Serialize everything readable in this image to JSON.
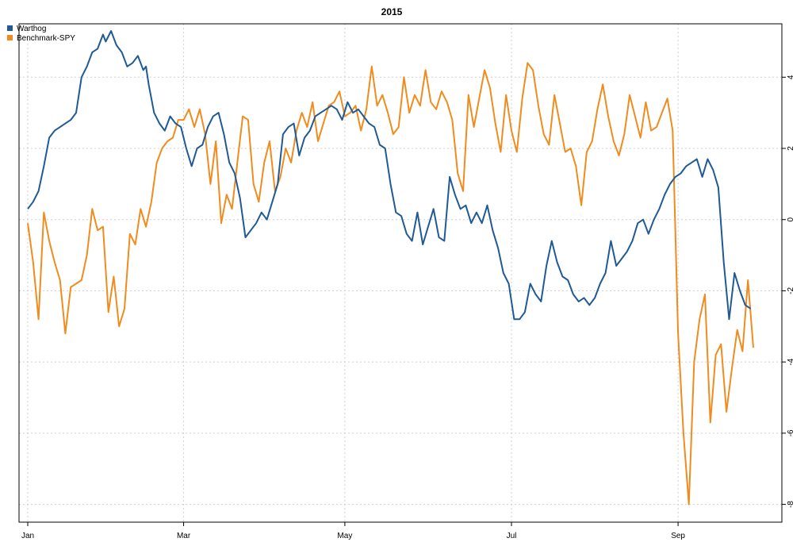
{
  "chart_data": {
    "type": "line",
    "title": "2015",
    "xlabel": "",
    "ylabel": "",
    "x_tick_labels": [
      "Jan",
      "Mar",
      "May",
      "Jul",
      "Sep"
    ],
    "x_tick_days": [
      2,
      60,
      120,
      182,
      244
    ],
    "x_range_days": [
      2,
      272
    ],
    "y_ticks": [
      4,
      2,
      0,
      -2,
      -4,
      -6,
      -8
    ],
    "ylim": [
      -8.5,
      5.5
    ],
    "y_axis_side": "right",
    "grid": true,
    "legend_position": "top-left",
    "series": [
      {
        "name": "Warthog",
        "color": "#1f5a96",
        "points": [
          [
            2,
            0.3
          ],
          [
            4,
            0.5
          ],
          [
            6,
            0.8
          ],
          [
            8,
            1.5
          ],
          [
            10,
            2.3
          ],
          [
            12,
            2.5
          ],
          [
            14,
            2.6
          ],
          [
            16,
            2.7
          ],
          [
            18,
            2.8
          ],
          [
            20,
            3.0
          ],
          [
            22,
            4.0
          ],
          [
            24,
            4.3
          ],
          [
            26,
            4.7
          ],
          [
            28,
            4.8
          ],
          [
            30,
            5.2
          ],
          [
            31,
            5.0
          ],
          [
            33,
            5.3
          ],
          [
            35,
            4.9
          ],
          [
            37,
            4.7
          ],
          [
            39,
            4.3
          ],
          [
            41,
            4.4
          ],
          [
            43,
            4.6
          ],
          [
            45,
            4.2
          ],
          [
            46,
            4.3
          ],
          [
            47,
            3.8
          ],
          [
            49,
            3.0
          ],
          [
            51,
            2.7
          ],
          [
            53,
            2.5
          ],
          [
            55,
            2.9
          ],
          [
            57,
            2.7
          ],
          [
            59,
            2.6
          ],
          [
            61,
            2.0
          ],
          [
            63,
            1.5
          ],
          [
            65,
            2.0
          ],
          [
            67,
            2.1
          ],
          [
            69,
            2.6
          ],
          [
            71,
            2.9
          ],
          [
            73,
            3.0
          ],
          [
            75,
            2.4
          ],
          [
            77,
            1.6
          ],
          [
            79,
            1.3
          ],
          [
            81,
            0.6
          ],
          [
            83,
            -0.5
          ],
          [
            85,
            -0.3
          ],
          [
            87,
            -0.1
          ],
          [
            89,
            0.2
          ],
          [
            91,
            0.0
          ],
          [
            93,
            0.5
          ],
          [
            95,
            1.0
          ],
          [
            97,
            2.4
          ],
          [
            99,
            2.6
          ],
          [
            101,
            2.7
          ],
          [
            103,
            1.8
          ],
          [
            105,
            2.3
          ],
          [
            107,
            2.5
          ],
          [
            109,
            2.9
          ],
          [
            111,
            3.0
          ],
          [
            113,
            3.1
          ],
          [
            115,
            3.2
          ],
          [
            117,
            3.1
          ],
          [
            119,
            2.8
          ],
          [
            121,
            3.3
          ],
          [
            123,
            3.0
          ],
          [
            125,
            3.1
          ],
          [
            127,
            2.9
          ],
          [
            129,
            2.7
          ],
          [
            131,
            2.6
          ],
          [
            133,
            2.1
          ],
          [
            135,
            2.0
          ],
          [
            137,
            1.0
          ],
          [
            139,
            0.2
          ],
          [
            141,
            0.1
          ],
          [
            143,
            -0.4
          ],
          [
            145,
            -0.6
          ],
          [
            147,
            0.2
          ],
          [
            149,
            -0.7
          ],
          [
            151,
            -0.2
          ],
          [
            153,
            0.3
          ],
          [
            155,
            -0.5
          ],
          [
            157,
            -0.6
          ],
          [
            159,
            1.2
          ],
          [
            161,
            0.7
          ],
          [
            163,
            0.3
          ],
          [
            165,
            0.4
          ],
          [
            167,
            -0.1
          ],
          [
            169,
            0.2
          ],
          [
            171,
            -0.1
          ],
          [
            173,
            0.4
          ],
          [
            175,
            -0.3
          ],
          [
            177,
            -0.8
          ],
          [
            179,
            -1.5
          ],
          [
            181,
            -1.8
          ],
          [
            183,
            -2.8
          ],
          [
            185,
            -2.8
          ],
          [
            187,
            -2.6
          ],
          [
            189,
            -1.8
          ],
          [
            191,
            -2.1
          ],
          [
            193,
            -2.3
          ],
          [
            195,
            -1.3
          ],
          [
            197,
            -0.6
          ],
          [
            199,
            -1.2
          ],
          [
            201,
            -1.6
          ],
          [
            203,
            -1.7
          ],
          [
            205,
            -2.1
          ],
          [
            207,
            -2.3
          ],
          [
            209,
            -2.2
          ],
          [
            211,
            -2.4
          ],
          [
            213,
            -2.2
          ],
          [
            215,
            -1.8
          ],
          [
            217,
            -1.5
          ],
          [
            219,
            -0.6
          ],
          [
            221,
            -1.3
          ],
          [
            223,
            -1.1
          ],
          [
            225,
            -0.9
          ],
          [
            227,
            -0.6
          ],
          [
            229,
            -0.1
          ],
          [
            231,
            0.0
          ],
          [
            233,
            -0.4
          ],
          [
            235,
            0.0
          ],
          [
            237,
            0.3
          ],
          [
            239,
            0.7
          ],
          [
            241,
            1.0
          ],
          [
            243,
            1.2
          ],
          [
            245,
            1.3
          ],
          [
            247,
            1.5
          ],
          [
            249,
            1.6
          ],
          [
            251,
            1.7
          ],
          [
            253,
            1.2
          ],
          [
            255,
            1.7
          ],
          [
            257,
            1.4
          ],
          [
            259,
            0.9
          ],
          [
            261,
            -1.2
          ],
          [
            263,
            -2.8
          ],
          [
            265,
            -1.5
          ],
          [
            267,
            -2.0
          ],
          [
            269,
            -2.4
          ],
          [
            271,
            -2.5
          ]
        ]
      },
      {
        "name": "Benchmark-SPY",
        "color": "#f08c1e",
        "points": [
          [
            2,
            -0.1
          ],
          [
            4,
            -1.2
          ],
          [
            6,
            -2.8
          ],
          [
            8,
            0.2
          ],
          [
            10,
            -0.6
          ],
          [
            12,
            -1.2
          ],
          [
            14,
            -1.7
          ],
          [
            16,
            -3.2
          ],
          [
            18,
            -1.9
          ],
          [
            20,
            -1.8
          ],
          [
            22,
            -1.7
          ],
          [
            24,
            -1.0
          ],
          [
            26,
            0.3
          ],
          [
            28,
            -0.3
          ],
          [
            30,
            -0.2
          ],
          [
            32,
            -2.6
          ],
          [
            34,
            -1.6
          ],
          [
            36,
            -3.0
          ],
          [
            38,
            -2.5
          ],
          [
            40,
            -0.4
          ],
          [
            42,
            -0.7
          ],
          [
            44,
            0.3
          ],
          [
            46,
            -0.2
          ],
          [
            48,
            0.5
          ],
          [
            50,
            1.6
          ],
          [
            52,
            2.0
          ],
          [
            54,
            2.2
          ],
          [
            56,
            2.3
          ],
          [
            58,
            2.8
          ],
          [
            60,
            2.8
          ],
          [
            62,
            3.1
          ],
          [
            64,
            2.6
          ],
          [
            66,
            3.1
          ],
          [
            68,
            2.4
          ],
          [
            70,
            1.0
          ],
          [
            72,
            2.2
          ],
          [
            74,
            -0.1
          ],
          [
            76,
            0.7
          ],
          [
            78,
            0.3
          ],
          [
            80,
            1.6
          ],
          [
            82,
            2.9
          ],
          [
            84,
            2.8
          ],
          [
            86,
            1.0
          ],
          [
            88,
            0.5
          ],
          [
            90,
            1.6
          ],
          [
            92,
            2.2
          ],
          [
            94,
            0.8
          ],
          [
            96,
            1.2
          ],
          [
            98,
            2.0
          ],
          [
            100,
            1.6
          ],
          [
            102,
            2.5
          ],
          [
            104,
            3.0
          ],
          [
            106,
            2.6
          ],
          [
            108,
            3.3
          ],
          [
            110,
            2.2
          ],
          [
            112,
            2.7
          ],
          [
            114,
            3.2
          ],
          [
            116,
            3.3
          ],
          [
            118,
            3.6
          ],
          [
            120,
            2.9
          ],
          [
            122,
            3.0
          ],
          [
            124,
            3.2
          ],
          [
            126,
            2.5
          ],
          [
            128,
            3.1
          ],
          [
            130,
            4.3
          ],
          [
            132,
            3.2
          ],
          [
            134,
            3.5
          ],
          [
            136,
            3.0
          ],
          [
            138,
            2.4
          ],
          [
            140,
            2.6
          ],
          [
            142,
            4.0
          ],
          [
            144,
            3.0
          ],
          [
            146,
            3.5
          ],
          [
            148,
            3.2
          ],
          [
            150,
            4.2
          ],
          [
            152,
            3.3
          ],
          [
            154,
            3.1
          ],
          [
            156,
            3.6
          ],
          [
            158,
            3.3
          ],
          [
            160,
            2.8
          ],
          [
            162,
            1.3
          ],
          [
            164,
            0.8
          ],
          [
            166,
            3.5
          ],
          [
            168,
            2.6
          ],
          [
            170,
            3.4
          ],
          [
            172,
            4.2
          ],
          [
            174,
            3.7
          ],
          [
            176,
            2.7
          ],
          [
            178,
            1.9
          ],
          [
            180,
            3.5
          ],
          [
            182,
            2.5
          ],
          [
            184,
            1.9
          ],
          [
            186,
            3.4
          ],
          [
            188,
            4.4
          ],
          [
            190,
            4.2
          ],
          [
            192,
            3.2
          ],
          [
            194,
            2.4
          ],
          [
            196,
            2.1
          ],
          [
            198,
            3.5
          ],
          [
            200,
            2.7
          ],
          [
            202,
            1.9
          ],
          [
            204,
            2.0
          ],
          [
            206,
            1.5
          ],
          [
            208,
            0.4
          ],
          [
            210,
            1.9
          ],
          [
            212,
            2.2
          ],
          [
            214,
            3.1
          ],
          [
            216,
            3.8
          ],
          [
            218,
            2.9
          ],
          [
            220,
            2.2
          ],
          [
            222,
            1.8
          ],
          [
            224,
            2.4
          ],
          [
            226,
            3.5
          ],
          [
            228,
            2.9
          ],
          [
            230,
            2.3
          ],
          [
            232,
            3.3
          ],
          [
            234,
            2.5
          ],
          [
            236,
            2.6
          ],
          [
            238,
            3.0
          ],
          [
            240,
            3.4
          ],
          [
            242,
            2.5
          ],
          [
            244,
            -3.2
          ],
          [
            246,
            -6.0
          ],
          [
            248,
            -8.0
          ],
          [
            250,
            -4.0
          ],
          [
            252,
            -2.8
          ],
          [
            254,
            -2.1
          ],
          [
            256,
            -5.7
          ],
          [
            258,
            -3.8
          ],
          [
            260,
            -3.5
          ],
          [
            262,
            -5.4
          ],
          [
            264,
            -4.2
          ],
          [
            266,
            -3.1
          ],
          [
            268,
            -3.7
          ],
          [
            270,
            -1.7
          ],
          [
            272,
            -3.6
          ]
        ]
      }
    ]
  }
}
